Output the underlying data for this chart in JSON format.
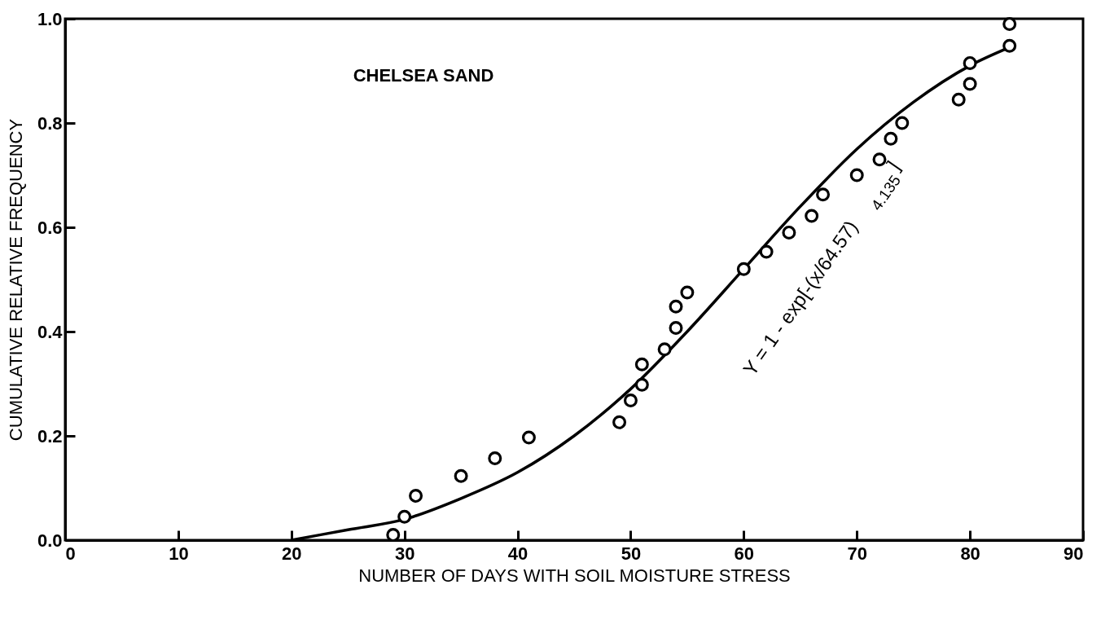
{
  "chart_data": {
    "type": "scatter",
    "title": "CHELSEA SAND",
    "xlabel": "NUMBER OF DAYS WITH SOIL MOISTURE STRESS",
    "ylabel": "CUMULATIVE RELATIVE FREQUENCY",
    "xlim": [
      0,
      90
    ],
    "xticks": [
      0,
      10,
      20,
      30,
      40,
      50,
      60,
      70,
      80,
      90
    ],
    "ylim": [
      0,
      1
    ],
    "yticks": [
      {
        "value": 0,
        "label": "0.0"
      },
      0.2,
      0.4,
      0.6,
      0.8,
      {
        "value": 1,
        "label": "1.0"
      }
    ],
    "grid": false,
    "marker": "circle",
    "annotations": [
      "Y = 1 - exp[-(x/64.57)$^{4.135}$]"
    ],
    "series": [
      {
        "color": "#000000",
        "x": [
          29,
          30,
          31,
          35,
          38,
          41,
          49,
          50,
          51,
          51,
          53,
          54,
          54,
          55,
          60,
          62,
          64,
          66,
          67,
          70,
          72,
          73,
          74,
          79,
          80,
          80,
          83.5,
          83.5
        ],
        "values": [
          0.01,
          0.045,
          0.085,
          0.123,
          0.157,
          0.197,
          0.226,
          0.268,
          0.298,
          0.337,
          0.366,
          0.407,
          0.448,
          0.475,
          0.52,
          0.553,
          0.59,
          0.622,
          0.663,
          0.7,
          0.73,
          0.77,
          0.8,
          0.845,
          0.875,
          0.915,
          0.948,
          0.99
        ]
      },
      {
        "type": "line",
        "marker": "none",
        "color": "#000000",
        "x": [
          20,
          25,
          30,
          35,
          40,
          45,
          50,
          55,
          60,
          65,
          70,
          75,
          80,
          83.5
        ],
        "values": [
          0.0,
          0.02,
          0.04,
          0.08,
          0.13,
          0.2,
          0.29,
          0.4,
          0.52,
          0.64,
          0.75,
          0.84,
          0.91,
          0.945
        ]
      }
    ]
  }
}
